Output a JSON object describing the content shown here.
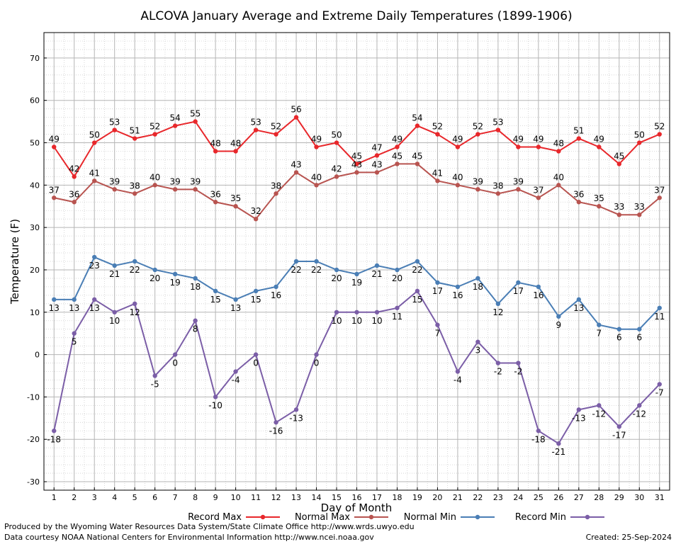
{
  "chart_data": {
    "type": "line",
    "title": "ALCOVA January Average and Extreme Daily Temperatures (1899-1906)",
    "xlabel": "Day of Month",
    "ylabel": "Temperature (F)",
    "x": [
      1,
      2,
      3,
      4,
      5,
      6,
      7,
      8,
      9,
      10,
      11,
      12,
      13,
      14,
      15,
      16,
      17,
      18,
      19,
      20,
      21,
      22,
      23,
      24,
      25,
      26,
      27,
      28,
      29,
      30,
      31
    ],
    "xlim": [
      0.5,
      31.5
    ],
    "ylim": [
      -32,
      76
    ],
    "yticks": [
      -30,
      -20,
      -10,
      0,
      10,
      20,
      30,
      40,
      50,
      60,
      70
    ],
    "grid": true,
    "legend_position": "bottom",
    "series": [
      {
        "name": "Record Max",
        "color": "#e8272b",
        "values": [
          49,
          42,
          50,
          53,
          51,
          52,
          54,
          55,
          48,
          48,
          53,
          52,
          56,
          49,
          50,
          45,
          47,
          49,
          54,
          52,
          49,
          52,
          53,
          49,
          49,
          48,
          51,
          49,
          45,
          50,
          52
        ]
      },
      {
        "name": "Normal Max",
        "color": "#b85450",
        "values": [
          37,
          36,
          41,
          39,
          38,
          40,
          39,
          39,
          36,
          35,
          32,
          38,
          43,
          40,
          42,
          43,
          43,
          45,
          45,
          41,
          40,
          39,
          38,
          39,
          37,
          40,
          36,
          35,
          33,
          33,
          37
        ]
      },
      {
        "name": "Normal Min",
        "color": "#4a7eb5",
        "values": [
          13,
          13,
          23,
          21,
          22,
          20,
          19,
          18,
          15,
          13,
          15,
          16,
          22,
          22,
          20,
          19,
          21,
          20,
          22,
          17,
          16,
          18,
          12,
          17,
          16,
          9,
          13,
          7,
          6,
          6,
          11
        ]
      },
      {
        "name": "Record Min",
        "color": "#7b5ea7",
        "values": [
          -18,
          5,
          13,
          10,
          12,
          -5,
          0,
          8,
          -10,
          -4,
          0,
          -16,
          -13,
          0,
          10,
          10,
          10,
          11,
          15,
          7,
          -4,
          3,
          -2,
          -2,
          -18,
          -21,
          -13,
          -12,
          -17,
          -12,
          -7
        ]
      }
    ]
  },
  "footer": {
    "produced_by": "Produced by the Wyoming Water Resources Data System/State Climate Office http://www.wrds.uwyo.edu",
    "courtesy": "Data courtesy NOAA National Centers for Environmental Information http://www.ncei.noaa.gov",
    "created": "Created:  25-Sep-2024"
  }
}
